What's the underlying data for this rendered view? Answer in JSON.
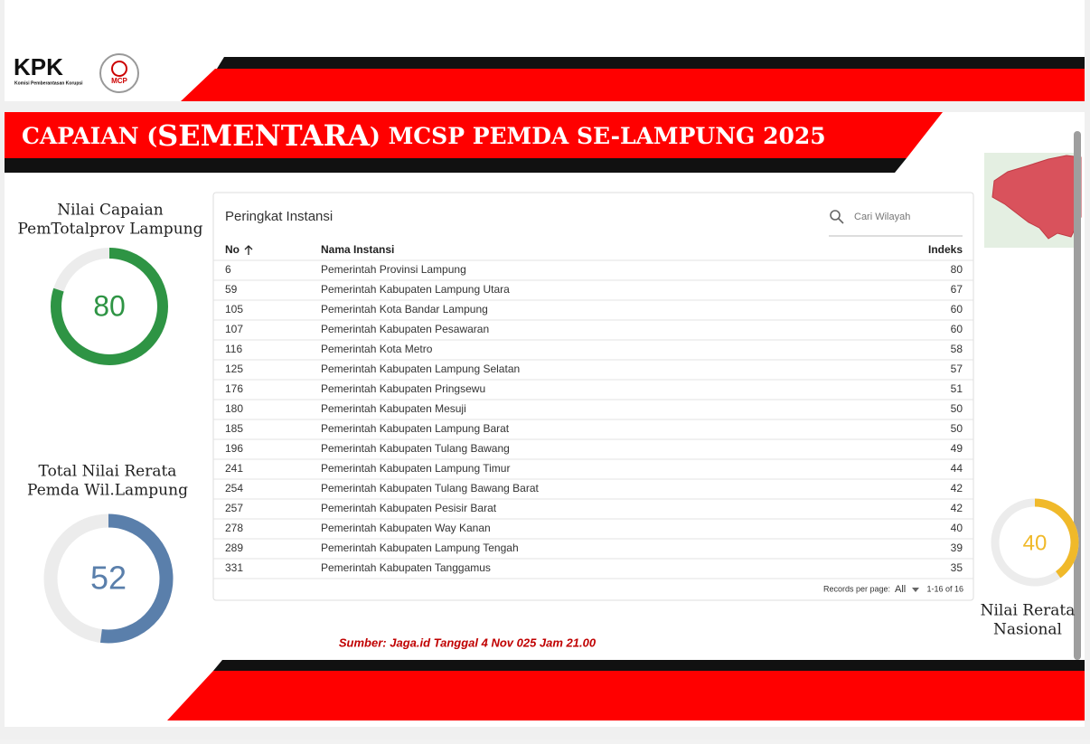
{
  "header": {
    "logo_text": "KPK",
    "logo_subtitle": "Komisi Pemberantasan Korupsi",
    "badge_text": "MCP",
    "title": [
      "CAPAIAN (",
      "SEMENTARA",
      ") MCSP PEMDA SE-LAMPUNG 2025"
    ]
  },
  "gauges": [
    {
      "label": [
        "Nilai Capaian",
        "PemTotalprov Lampung"
      ],
      "value": 80,
      "range": [
        0,
        100
      ],
      "color": "#2e9444"
    },
    {
      "label": [
        "Total Nilai Rerata",
        "Pemda Wil.Lampung"
      ],
      "value": 52,
      "range": [
        0,
        100
      ],
      "color": "#5a7fab"
    },
    {
      "label": [
        "Nilai Rerata",
        "Nasional"
      ],
      "value": 40,
      "range": [
        0,
        100
      ],
      "color": "#f0b92a"
    }
  ],
  "table": {
    "title": "Peringkat Instansi",
    "search_placeholder": "Cari Wilayah",
    "columns": [
      "No",
      "Nama Instansi",
      "Indeks"
    ],
    "rows": [
      [
        6,
        "Pemerintah Provinsi Lampung",
        80
      ],
      [
        59,
        "Pemerintah Kabupaten Lampung Utara",
        67
      ],
      [
        105,
        "Pemerintah Kota Bandar Lampung",
        60
      ],
      [
        107,
        "Pemerintah Kabupaten Pesawaran",
        60
      ],
      [
        116,
        "Pemerintah Kota Metro",
        58
      ],
      [
        125,
        "Pemerintah Kabupaten Lampung Selatan",
        57
      ],
      [
        176,
        "Pemerintah Kabupaten Pringsewu",
        51
      ],
      [
        180,
        "Pemerintah Kabupaten Mesuji",
        50
      ],
      [
        185,
        "Pemerintah Kabupaten Lampung Barat",
        50
      ],
      [
        196,
        "Pemerintah Kabupaten Tulang Bawang",
        49
      ],
      [
        241,
        "Pemerintah Kabupaten Lampung Timur",
        44
      ],
      [
        254,
        "Pemerintah Kabupaten Tulang Bawang Barat",
        42
      ],
      [
        257,
        "Pemerintah Kabupaten Pesisir Barat",
        42
      ],
      [
        278,
        "Pemerintah Kabupaten Way Kanan",
        40
      ],
      [
        289,
        "Pemerintah Kabupaten Lampung Tengah",
        39
      ],
      [
        331,
        "Pemerintah Kabupaten Tanggamus",
        35
      ]
    ],
    "records_label": "Records per page:",
    "records_value": "All",
    "pagination": "1-16 of 16"
  },
  "source": "Sumber: Jaga.id Tanggal 4 Nov 025 Jam 21.00"
}
